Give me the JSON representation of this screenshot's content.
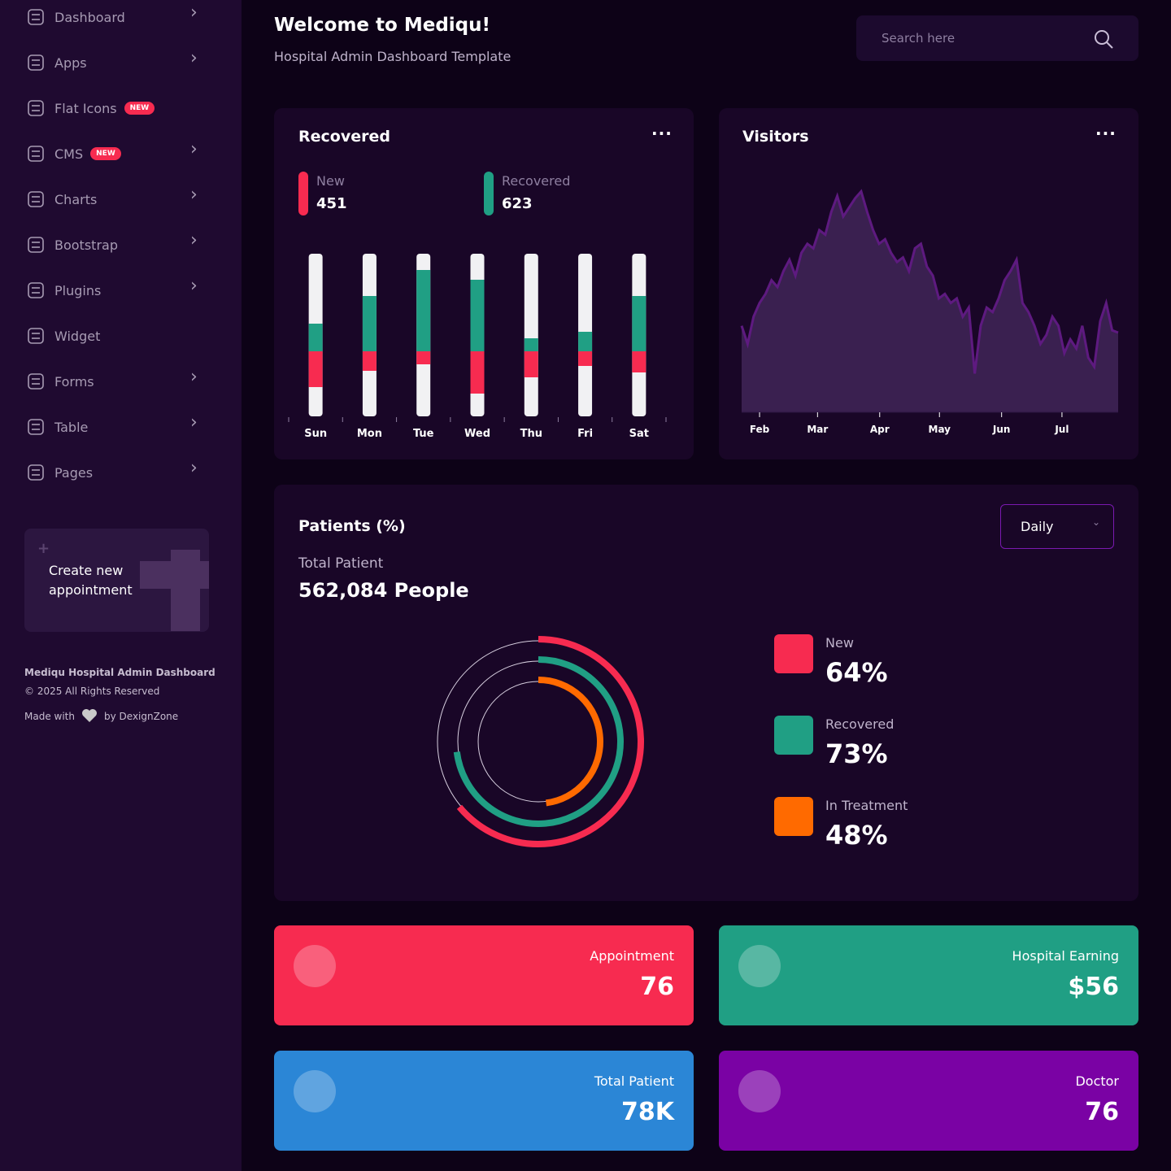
{
  "header": {
    "title": "Welcome to Mediqu!",
    "subtitle": "Hospital Admin Dashboard Template",
    "search_placeholder": "Search here"
  },
  "sidebar": {
    "menu": [
      {
        "label": "Dashboard"
      },
      {
        "label": "Apps"
      },
      {
        "label": "Flat Icons",
        "badge": "NEW"
      },
      {
        "label": "CMS",
        "badge": "NEW"
      },
      {
        "label": "Charts"
      },
      {
        "label": "Bootstrap"
      },
      {
        "label": "Plugins"
      },
      {
        "label": "Widget"
      },
      {
        "label": "Forms"
      },
      {
        "label": "Table"
      },
      {
        "label": "Pages"
      }
    ],
    "promo": "Create new appointment",
    "footer": {
      "title": "Mediqu Hospital Admin Dashboard",
      "copyright": "© 2025 All Rights Reserved",
      "made_with": "Made with",
      "by": "by DexignZone"
    }
  },
  "chart_data": [
    {
      "type": "bar",
      "title": "Recovered",
      "categories": [
        "Sun",
        "Mon",
        "Tue",
        "Wed",
        "Thu",
        "Fri",
        "Sat"
      ],
      "ylim": [
        -40,
        60
      ],
      "series": [
        {
          "name": "New",
          "color": "#f72b50",
          "total": 451,
          "values": [
            -22,
            -12,
            -8,
            -26,
            -16,
            -9,
            -13
          ]
        },
        {
          "name": "Recovered",
          "color": "#209f84",
          "total": 623,
          "values": [
            17,
            34,
            50,
            44,
            8,
            12,
            34
          ]
        }
      ]
    },
    {
      "type": "area",
      "title": "Visitors",
      "color": "#3a2050",
      "line_color": "#5e1a80",
      "xlim": [
        0,
        63
      ],
      "ylim": [
        0,
        100
      ],
      "xticks": [
        {
          "value": 3,
          "label": "Feb"
        },
        {
          "value": 12.7,
          "label": "Mar"
        },
        {
          "value": 23.1,
          "label": "Apr"
        },
        {
          "value": 33.1,
          "label": "May"
        },
        {
          "value": 43.5,
          "label": "Jun"
        },
        {
          "value": 53.6,
          "label": "Jul"
        }
      ],
      "values": [
        38,
        30,
        42,
        48,
        52,
        58,
        55,
        62,
        67,
        60,
        70,
        74,
        72,
        80,
        78,
        88,
        95,
        86,
        90,
        94,
        97,
        88,
        80,
        74,
        76,
        70,
        66,
        68,
        62,
        72,
        74,
        64,
        60,
        50,
        52,
        48,
        50,
        42,
        46,
        17,
        38,
        46,
        44,
        50,
        58,
        62,
        67,
        48,
        44,
        38,
        30,
        34,
        42,
        38,
        26,
        32,
        28,
        38,
        24,
        20,
        40,
        48,
        36,
        35
      ]
    },
    {
      "type": "radial",
      "title": "Patients (%)",
      "filter": "Daily",
      "subtitle": "Total Patient",
      "total_label": "562,084 People",
      "ylim": [
        0,
        100
      ],
      "series": [
        {
          "name": "New",
          "color": "#f72b50",
          "values": [
            64
          ],
          "value_labels": [
            "64%"
          ]
        },
        {
          "name": "Recovered",
          "color": "#209f84",
          "values": [
            73
          ],
          "value_labels": [
            "73%"
          ]
        },
        {
          "name": "In Treatment",
          "color": "#ff6a00",
          "values": [
            48
          ],
          "value_labels": [
            "48%"
          ]
        }
      ]
    }
  ],
  "stats": [
    {
      "label": "Appointment",
      "value": "76",
      "color": "#f72b50"
    },
    {
      "label": "Hospital Earning",
      "value": "$56",
      "color": "#209f84"
    },
    {
      "label": "Total Patient",
      "value": "78K",
      "color": "#2b86d6"
    },
    {
      "label": "Doctor",
      "value": "76",
      "color": "#7a02a4"
    }
  ]
}
